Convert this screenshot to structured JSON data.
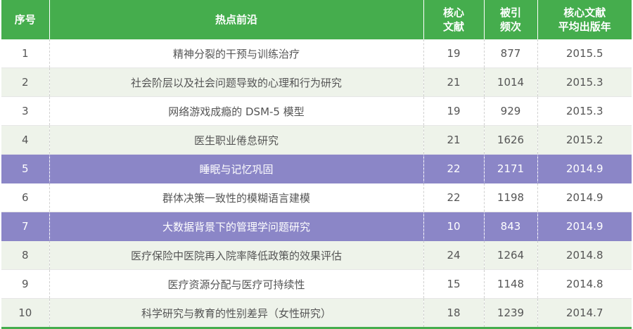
{
  "header": {
    "index": "序号",
    "topic": "热点前沿",
    "core_line1": "核心",
    "core_line2": "文献",
    "cite_line1": "被引",
    "cite_line2": "频次",
    "year_line1": "核心文献",
    "year_line2": "平均出版年"
  },
  "colors": {
    "header_green": "#45ad4d",
    "highlight_purple": "#8b86c7",
    "stripe": "#eef3ea"
  },
  "rows": [
    {
      "index": "1",
      "topic": "精神分裂的干预与训练治疗",
      "core": "19",
      "cite": "877",
      "year": "2015.5",
      "style": "plain"
    },
    {
      "index": "2",
      "topic": "社会阶层以及社会问题导致的心理和行为研究",
      "core": "21",
      "cite": "1014",
      "year": "2015.3",
      "style": "alt"
    },
    {
      "index": "3",
      "topic": "网络游戏成瘾的 DSM-5 模型",
      "core": "19",
      "cite": "929",
      "year": "2015.3",
      "style": "plain"
    },
    {
      "index": "4",
      "topic": "医生职业倦怠研究",
      "core": "21",
      "cite": "1626",
      "year": "2015.2",
      "style": "alt"
    },
    {
      "index": "5",
      "topic": "睡眠与记忆巩固",
      "core": "22",
      "cite": "2171",
      "year": "2014.9",
      "style": "hl"
    },
    {
      "index": "6",
      "topic": "群体决策一致性的模糊语言建模",
      "core": "22",
      "cite": "1198",
      "year": "2014.9",
      "style": "plain"
    },
    {
      "index": "7",
      "topic": "大数据背景下的管理学问题研究",
      "core": "10",
      "cite": "843",
      "year": "2014.9",
      "style": "hl"
    },
    {
      "index": "8",
      "topic": "医疗保险中医院再入院率降低政策的效果评估",
      "core": "24",
      "cite": "1264",
      "year": "2014.8",
      "style": "alt"
    },
    {
      "index": "9",
      "topic": "医疗资源分配与医疗可持续性",
      "core": "15",
      "cite": "1148",
      "year": "2014.8",
      "style": "plain"
    },
    {
      "index": "10",
      "topic": "科学研究与教育的性别差异（女性研究）",
      "core": "18",
      "cite": "1239",
      "year": "2014.7",
      "style": "alt"
    }
  ]
}
